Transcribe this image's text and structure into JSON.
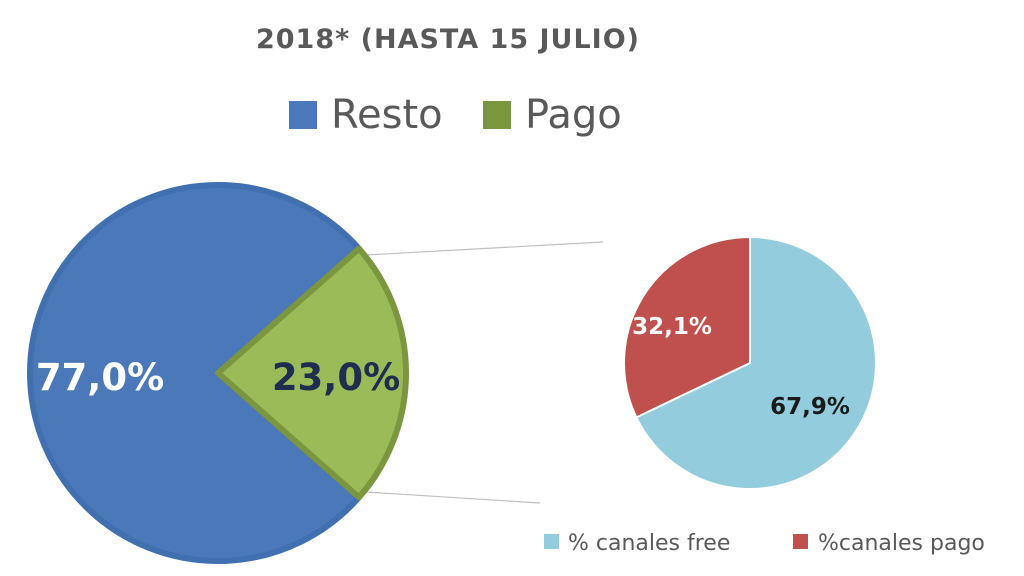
{
  "chart_data": [
    {
      "type": "pie",
      "title": "2018* (HASTA 15 JULIO)",
      "categories": [
        "Resto",
        "Pago"
      ],
      "values": [
        77.0,
        23.0
      ],
      "data_labels": [
        "77,0%",
        "23,0%"
      ],
      "colors": [
        "#4a78b8",
        "#9bbb59"
      ],
      "legend": {
        "placement": "top",
        "entries": [
          "Resto",
          "Pago"
        ]
      }
    },
    {
      "type": "pie",
      "title": "",
      "categories": [
        "% canales free",
        "%canales pago"
      ],
      "values": [
        67.9,
        32.1
      ],
      "data_labels": [
        "67,9%",
        "32,1%"
      ],
      "colors": [
        "#93cddd",
        "#c0504d"
      ],
      "legend": {
        "placement": "bottom",
        "entries": [
          "% canales free",
          "%canales pago"
        ]
      }
    }
  ]
}
